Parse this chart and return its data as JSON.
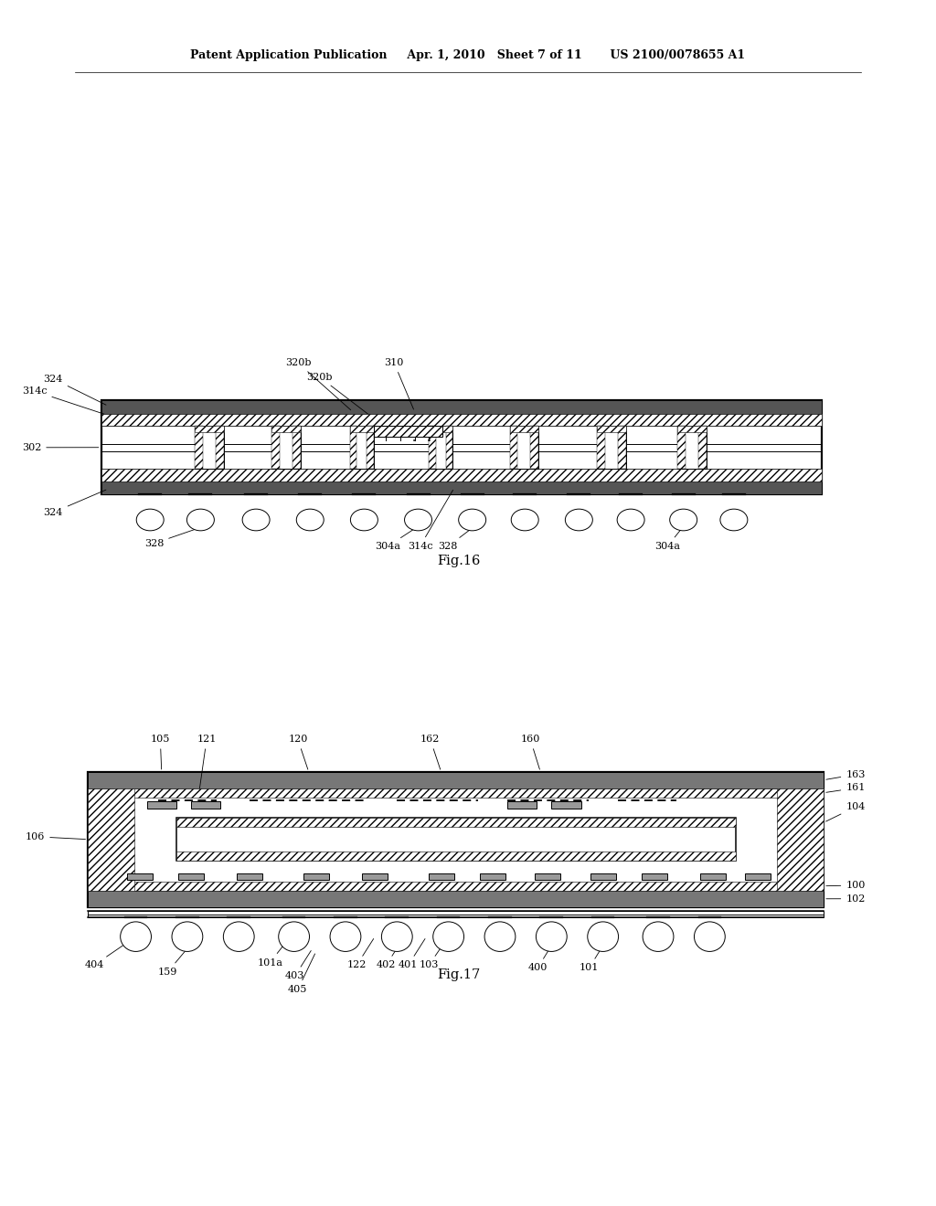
{
  "bg_color": "#ffffff",
  "line_color": "#000000",
  "header_text": "Patent Application Publication     Apr. 1, 2010   Sheet 7 of 11       US 2100/0078655 A1",
  "fig16_label": "Fig.16",
  "fig17_label": "Fig.17"
}
